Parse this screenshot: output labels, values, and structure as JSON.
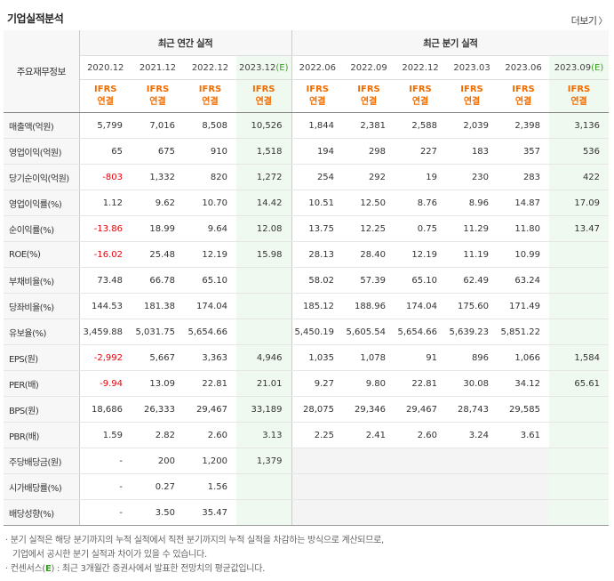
{
  "title": "기업실적분석",
  "more_label": "더보기",
  "more_icon": "chevron-right-icon",
  "header": {
    "row_label": "주요재무정보",
    "annual_group": "최근 연간 실적",
    "quarter_group": "최근 분기 실적",
    "annual_periods": [
      "2020.12",
      "2021.12",
      "2022.12",
      "2023.12"
    ],
    "quarter_periods": [
      "2022.06",
      "2022.09",
      "2022.12",
      "2023.03",
      "2023.06",
      "2023.09"
    ],
    "est_mark": "(E)",
    "ifrs_top": "IFRS",
    "ifrs_bottom": "연결"
  },
  "rows": [
    {
      "label": "매출액(억원)",
      "values": [
        "5,799",
        "7,016",
        "8,508",
        "10,526",
        "1,844",
        "2,381",
        "2,588",
        "2,039",
        "2,398",
        "3,136"
      ]
    },
    {
      "label": "영업이익(억원)",
      "values": [
        "65",
        "675",
        "910",
        "1,518",
        "194",
        "298",
        "227",
        "183",
        "357",
        "536"
      ]
    },
    {
      "label": "당기순이익(억원)",
      "values": [
        "-803",
        "1,332",
        "820",
        "1,272",
        "254",
        "292",
        "19",
        "230",
        "283",
        "422"
      ]
    },
    {
      "label": "영업이익률(%)",
      "values": [
        "1.12",
        "9.62",
        "10.70",
        "14.42",
        "10.51",
        "12.50",
        "8.76",
        "8.96",
        "14.87",
        "17.09"
      ]
    },
    {
      "label": "순이익률(%)",
      "values": [
        "-13.86",
        "18.99",
        "9.64",
        "12.08",
        "13.75",
        "12.25",
        "0.75",
        "11.29",
        "11.80",
        "13.47"
      ]
    },
    {
      "label": "ROE(%)",
      "values": [
        "-16.02",
        "25.48",
        "12.19",
        "15.98",
        "28.13",
        "28.40",
        "12.19",
        "11.19",
        "10.99",
        ""
      ]
    },
    {
      "label": "부채비율(%)",
      "values": [
        "73.48",
        "66.78",
        "65.10",
        "",
        "58.02",
        "57.39",
        "65.10",
        "62.49",
        "63.24",
        ""
      ]
    },
    {
      "label": "당좌비율(%)",
      "values": [
        "144.53",
        "181.38",
        "174.04",
        "",
        "185.12",
        "188.96",
        "174.04",
        "175.60",
        "171.49",
        ""
      ]
    },
    {
      "label": "유보율(%)",
      "values": [
        "3,459.88",
        "5,031.75",
        "5,654.66",
        "",
        "5,450.19",
        "5,605.54",
        "5,654.66",
        "5,639.23",
        "5,851.22",
        ""
      ]
    },
    {
      "label": "EPS(원)",
      "values": [
        "-2,992",
        "5,667",
        "3,363",
        "4,946",
        "1,035",
        "1,078",
        "91",
        "896",
        "1,066",
        "1,584"
      ]
    },
    {
      "label": "PER(배)",
      "values": [
        "-9.94",
        "13.09",
        "22.81",
        "21.01",
        "9.27",
        "9.80",
        "22.81",
        "30.08",
        "34.12",
        "65.61"
      ]
    },
    {
      "label": "BPS(원)",
      "values": [
        "18,686",
        "26,333",
        "29,467",
        "33,189",
        "28,075",
        "29,346",
        "29,467",
        "28,743",
        "29,585",
        ""
      ]
    },
    {
      "label": "PBR(배)",
      "values": [
        "1.59",
        "2.82",
        "2.60",
        "3.13",
        "2.25",
        "2.41",
        "2.60",
        "3.24",
        "3.61",
        ""
      ]
    },
    {
      "label": "주당배당금(원)",
      "values": [
        "-",
        "200",
        "1,200",
        "1,379",
        "",
        "",
        "",
        "",
        "",
        ""
      ]
    },
    {
      "label": "시가배당률(%)",
      "values": [
        "-",
        "0.27",
        "1.56",
        "",
        "",
        "",
        "",
        "",
        "",
        ""
      ]
    },
    {
      "label": "배당성향(%)",
      "values": [
        "-",
        "3.50",
        "35.47",
        "",
        "",
        "",
        "",
        "",
        "",
        ""
      ]
    }
  ],
  "notes": {
    "line1": "분기 실적은 해당 분기까지의 누적 실적에서 직전 분기까지의 누적 실적을 차감하는 방식으로 계산되므로,",
    "line2": "기업에서 공시한 분기 실적과 차이가 있을 수 있습니다.",
    "line3_pre": "컨센서스(",
    "line3_mark": "E",
    "line3_post": ") : 최근 3개월간 증권사에서 발표한 전망치의 평균값입니다."
  },
  "colors": {
    "negative": "#e8000b",
    "ifrs": "#f26d00",
    "estimate": "#3a9d23",
    "estimate_bg": "#f0f9f0"
  }
}
